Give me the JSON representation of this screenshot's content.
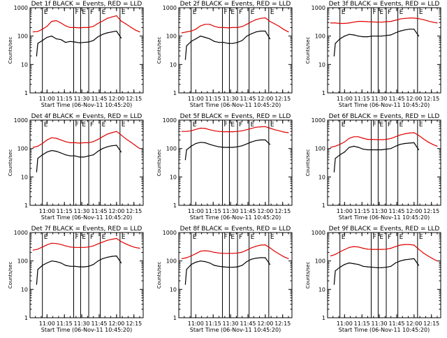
{
  "chart_data": {
    "type": "line",
    "panel_count": 9,
    "y_scale": "log",
    "ylim": [
      1,
      1000
    ],
    "xlim": [
      "10:45:20",
      "12:23"
    ],
    "xticks": [
      "11:00",
      "11:15",
      "11:30",
      "11:45",
      "12:00",
      "12:15"
    ],
    "yticks": [
      "1",
      "10",
      "100",
      "1000"
    ],
    "ylabel": "Counts/sec",
    "xlabel": "Start Time (06-Nov-11 10:45:20)",
    "grid": false,
    "colors": {
      "events": "#000000",
      "lld": "#e00000",
      "axes": "#000000",
      "background": "#ffffff"
    },
    "interval_markers": [
      {
        "time": "10:56",
        "label": "E"
      },
      {
        "time": "11:23",
        "label": "F"
      },
      {
        "time": "11:29",
        "label": "E"
      },
      {
        "time": "11:36",
        "label": "F"
      },
      {
        "time": "11:46",
        "label": "E"
      },
      {
        "time": "12:03",
        "label": "E"
      }
    ],
    "x": [
      "10:48",
      "10:52",
      "10:56",
      "11:00",
      "11:04",
      "11:08",
      "11:12",
      "11:16",
      "11:20",
      "11:24",
      "11:28",
      "11:32",
      "11:36",
      "11:40",
      "11:44",
      "11:48",
      "11:52",
      "11:56",
      "12:00",
      "12:04",
      "12:08",
      "12:12",
      "12:16",
      "12:20"
    ],
    "panels": [
      {
        "title": "Det 1f BLACK = Events, RED = LLD",
        "events_x": [
          "10:51",
          "10:52",
          "10:56",
          "11:00",
          "11:04",
          "11:08",
          "11:12",
          "11:16",
          "11:20",
          "11:24",
          "11:28",
          "11:32",
          "11:36",
          "11:40",
          "11:44",
          "11:48",
          "11:52",
          "11:56",
          "12:00",
          "12:04"
        ],
        "events": [
          20,
          55,
          70,
          90,
          100,
          80,
          75,
          60,
          65,
          62,
          58,
          60,
          62,
          70,
          95,
          115,
          130,
          140,
          150,
          85
        ],
        "lld": [
          140,
          145,
          175,
          220,
          330,
          350,
          290,
          230,
          200,
          200,
          195,
          200,
          200,
          220,
          280,
          340,
          420,
          470,
          520,
          340,
          270,
          210,
          165,
          140
        ]
      },
      {
        "title": "Det 2f BLACK = Events, RED = LLD",
        "events_x": [
          "10:51",
          "10:52",
          "10:56",
          "11:00",
          "11:04",
          "11:08",
          "11:12",
          "11:16",
          "11:20",
          "11:24",
          "11:28",
          "11:32",
          "11:36",
          "11:40",
          "11:44",
          "11:48",
          "11:52",
          "11:56",
          "12:00",
          "12:04"
        ],
        "events": [
          15,
          45,
          65,
          80,
          100,
          90,
          80,
          65,
          60,
          60,
          55,
          55,
          60,
          70,
          100,
          120,
          140,
          150,
          150,
          80
        ],
        "lld": [
          130,
          140,
          150,
          175,
          230,
          260,
          260,
          220,
          200,
          200,
          195,
          200,
          200,
          215,
          260,
          320,
          380,
          420,
          440,
          330,
          270,
          220,
          170,
          140
        ]
      },
      {
        "title": "Det 3f BLACK = Events, RED = LLD",
        "events_x": [
          "10:51",
          "10:52",
          "10:56",
          "11:00",
          "11:04",
          "11:08",
          "11:12",
          "11:16",
          "11:20",
          "11:24",
          "11:28",
          "11:32",
          "11:36",
          "11:40",
          "11:44",
          "11:48",
          "11:52",
          "11:56",
          "12:00",
          "12:04"
        ],
        "events": [
          20,
          55,
          80,
          100,
          115,
          110,
          100,
          95,
          95,
          100,
          100,
          100,
          105,
          110,
          130,
          150,
          165,
          175,
          175,
          100
        ],
        "lld": [
          290,
          290,
          280,
          280,
          290,
          310,
          330,
          330,
          320,
          315,
          310,
          310,
          320,
          330,
          360,
          400,
          420,
          430,
          430,
          410,
          380,
          340,
          310,
          290
        ]
      },
      {
        "title": "Det 4f BLACK = Events, RED = LLD",
        "events_x": [
          "10:51",
          "10:52",
          "10:56",
          "11:00",
          "11:04",
          "11:08",
          "11:12",
          "11:16",
          "11:20",
          "11:24",
          "11:28",
          "11:32",
          "11:36",
          "11:40",
          "11:44",
          "11:48",
          "11:52",
          "11:56",
          "12:00",
          "12:04"
        ],
        "events": [
          15,
          45,
          60,
          75,
          85,
          80,
          70,
          60,
          55,
          55,
          50,
          50,
          55,
          60,
          80,
          100,
          115,
          125,
          130,
          75
        ],
        "lld": [
          110,
          120,
          150,
          200,
          240,
          230,
          200,
          175,
          160,
          160,
          155,
          160,
          160,
          175,
          210,
          260,
          320,
          360,
          400,
          300,
          220,
          170,
          130,
          100
        ]
      },
      {
        "title": "Det 5f BLACK = Events, RED = LLD",
        "events_x": [
          "10:51",
          "10:52",
          "10:56",
          "11:00",
          "11:04",
          "11:08",
          "11:12",
          "11:16",
          "11:20",
          "11:24",
          "11:28",
          "11:32",
          "11:36",
          "11:40",
          "11:44",
          "11:48",
          "11:52",
          "11:56",
          "12:00",
          "12:04"
        ],
        "events": [
          40,
          90,
          120,
          150,
          165,
          160,
          140,
          125,
          115,
          110,
          110,
          110,
          115,
          125,
          145,
          170,
          190,
          200,
          200,
          140
        ],
        "lld": [
          400,
          400,
          420,
          470,
          520,
          510,
          460,
          420,
          400,
          390,
          390,
          390,
          400,
          420,
          460,
          510,
          560,
          580,
          590,
          520,
          460,
          420,
          380,
          360
        ]
      },
      {
        "title": "Det 6f BLACK = Events, RED = LLD",
        "events_x": [
          "10:51",
          "10:52",
          "10:56",
          "11:00",
          "11:04",
          "11:08",
          "11:12",
          "11:16",
          "11:20",
          "11:24",
          "11:28",
          "11:32",
          "11:36",
          "11:40",
          "11:44",
          "11:48",
          "11:52",
          "11:56",
          "12:00",
          "12:04"
        ],
        "events": [
          15,
          45,
          60,
          75,
          110,
          120,
          110,
          95,
          90,
          90,
          90,
          90,
          95,
          100,
          120,
          140,
          150,
          155,
          160,
          90
        ],
        "lld": [
          110,
          120,
          140,
          170,
          230,
          260,
          260,
          230,
          210,
          210,
          205,
          205,
          210,
          225,
          260,
          300,
          330,
          350,
          360,
          290,
          220,
          170,
          140,
          120
        ]
      },
      {
        "title": "Det 7f BLACK = Events, RED = LLD",
        "events_x": [
          "10:51",
          "10:52",
          "10:56",
          "11:00",
          "11:04",
          "11:08",
          "11:12",
          "11:16",
          "11:20",
          "11:24",
          "11:28",
          "11:32",
          "11:36",
          "11:40",
          "11:44",
          "11:48",
          "11:52",
          "11:56",
          "12:00",
          "12:04"
        ],
        "events": [
          15,
          50,
          70,
          85,
          100,
          95,
          85,
          70,
          65,
          65,
          62,
          62,
          65,
          75,
          100,
          120,
          135,
          145,
          150,
          85
        ],
        "lld": [
          240,
          260,
          310,
          370,
          420,
          410,
          380,
          340,
          310,
          300,
          300,
          300,
          310,
          340,
          400,
          460,
          530,
          580,
          620,
          480,
          400,
          340,
          300,
          280
        ]
      },
      {
        "title": "Det 8f BLACK = Events, RED = LLD",
        "events_x": [
          "10:51",
          "10:52",
          "10:56",
          "11:00",
          "11:04",
          "11:08",
          "11:12",
          "11:16",
          "11:20",
          "11:24",
          "11:28",
          "11:32",
          "11:36",
          "11:40",
          "11:44",
          "11:48",
          "11:52",
          "11:56",
          "12:00",
          "12:04"
        ],
        "events": [
          15,
          50,
          75,
          90,
          100,
          95,
          85,
          70,
          65,
          62,
          60,
          60,
          62,
          70,
          95,
          115,
          125,
          130,
          130,
          75
        ],
        "lld": [
          120,
          130,
          150,
          180,
          220,
          230,
          220,
          200,
          190,
          185,
          185,
          185,
          190,
          205,
          240,
          290,
          330,
          360,
          370,
          290,
          220,
          175,
          140,
          120
        ]
      },
      {
        "title": "Det 9f BLACK = Events, RED = LLD",
        "events_x": [
          "10:51",
          "10:52",
          "10:56",
          "11:00",
          "11:04",
          "11:08",
          "11:12",
          "11:16",
          "11:20",
          "11:24",
          "11:28",
          "11:32",
          "11:36",
          "11:40",
          "11:44",
          "11:48",
          "11:52",
          "11:56",
          "12:00",
          "12:04"
        ],
        "events": [
          15,
          45,
          60,
          75,
          85,
          80,
          75,
          65,
          62,
          60,
          58,
          58,
          60,
          65,
          85,
          100,
          110,
          115,
          120,
          70
        ],
        "lld": [
          150,
          170,
          210,
          250,
          300,
          320,
          310,
          280,
          260,
          255,
          255,
          255,
          260,
          280,
          320,
          360,
          380,
          380,
          360,
          260,
          190,
          150,
          120,
          100
        ]
      }
    ]
  }
}
